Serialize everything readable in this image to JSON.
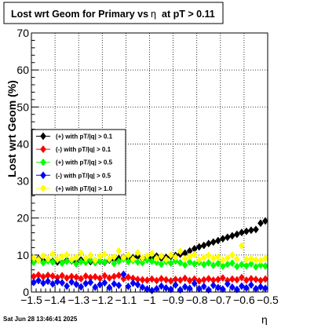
{
  "chart_data": {
    "type": "scatter",
    "title": "Lost wrt Geom for Primary vs",
    "title_symbol": "η",
    "title_suffix": "at pT > 0.11",
    "xlabel": "η",
    "ylabel": "Lost wrt Geom (%)",
    "xlim": [
      -1.5,
      -0.5
    ],
    "ylim": [
      0,
      70
    ],
    "x_ticks": [
      -1.5,
      -1.4,
      -1.3,
      -1.2,
      -1.1,
      -1,
      -0.9,
      -0.8,
      -0.7,
      -0.6,
      -0.5
    ],
    "x_tick_labels": [
      "−1.5",
      "−1.4",
      "−1.3",
      "−1.2",
      "−1.1",
      "−1",
      "−0.9",
      "−0.8",
      "−0.7",
      "−0.6",
      "−0.5"
    ],
    "y_ticks": [
      0,
      10,
      20,
      30,
      40,
      50,
      60,
      70
    ],
    "y_tick_labels": [
      "0",
      "10",
      "20",
      "30",
      "40",
      "50",
      "60",
      "70"
    ],
    "grid": true,
    "legend_position": "left-middle",
    "x": [
      -1.49,
      -1.47,
      -1.45,
      -1.43,
      -1.41,
      -1.39,
      -1.37,
      -1.35,
      -1.33,
      -1.31,
      -1.29,
      -1.27,
      -1.25,
      -1.23,
      -1.21,
      -1.19,
      -1.17,
      -1.15,
      -1.13,
      -1.11,
      -1.09,
      -1.07,
      -1.05,
      -1.03,
      -1.01,
      -0.99,
      -0.97,
      -0.95,
      -0.93,
      -0.91,
      -0.89,
      -0.87,
      -0.85,
      -0.83,
      -0.81,
      -0.79,
      -0.77,
      -0.75,
      -0.73,
      -0.71,
      -0.69,
      -0.67,
      -0.65,
      -0.63,
      -0.61,
      -0.59,
      -0.57,
      -0.55,
      -0.53,
      -0.51
    ],
    "series": [
      {
        "name": "(+) with pT/|q| > 0.1",
        "color": "#000000",
        "values": [
          8.2,
          9.0,
          8.5,
          8.8,
          8.3,
          8.1,
          7.9,
          8.6,
          8.4,
          8.0,
          8.7,
          8.9,
          8.2,
          8.5,
          8.3,
          8.0,
          8.6,
          8.8,
          9.1,
          9.4,
          8.9,
          9.3,
          9.6,
          9.0,
          9.5,
          9.2,
          9.7,
          9.1,
          9.4,
          9.6,
          9.9,
          10.2,
          10.5,
          11.1,
          11.7,
          12.2,
          12.6,
          13.1,
          13.5,
          13.9,
          14.4,
          14.8,
          15.2,
          15.6,
          16.1,
          16.4,
          16.7,
          16.9,
          18.6,
          19.2
        ]
      },
      {
        "name": "(-) with pT/|q| > 0.1",
        "color": "#ff0000",
        "values": [
          4.2,
          4.6,
          4.1,
          4.5,
          4.3,
          3.9,
          4.4,
          3.8,
          4.2,
          4.0,
          3.6,
          4.3,
          3.9,
          4.1,
          3.7,
          4.4,
          3.8,
          4.2,
          4.5,
          3.6,
          4.0,
          3.7,
          3.4,
          3.3,
          3.2,
          3.5,
          3.1,
          3.6,
          3.3,
          3.0,
          3.4,
          3.2,
          3.7,
          3.1,
          3.5,
          3.0,
          3.3,
          3.6,
          3.2,
          3.4,
          3.8,
          3.1,
          3.5,
          3.3,
          3.9,
          3.2,
          3.6,
          3.4,
          3.1,
          3.5
        ]
      },
      {
        "name": "(+) with pT/|q| > 0.5",
        "color": "#00ff00",
        "values": [
          8.0,
          8.6,
          7.9,
          8.4,
          8.1,
          8.7,
          7.8,
          8.3,
          8.5,
          7.6,
          8.2,
          8.0,
          8.6,
          7.9,
          8.4,
          8.1,
          8.8,
          7.7,
          8.3,
          8.9,
          8.2,
          8.5,
          8.1,
          7.9,
          8.6,
          8.3,
          8.0,
          7.5,
          8.2,
          7.8,
          8.4,
          7.9,
          7.3,
          8.1,
          7.6,
          8.0,
          7.4,
          7.9,
          7.2,
          7.7,
          7.0,
          7.5,
          7.8,
          6.9,
          7.4,
          7.1,
          7.6,
          6.8,
          7.3,
          7.0
        ]
      },
      {
        "name": "(-) with pT/|q| > 0.5",
        "color": "#0000ff",
        "values": [
          2.6,
          3.1,
          2.4,
          2.9,
          2.2,
          2.8,
          2.5,
          1.6,
          2.7,
          2.1,
          1.4,
          2.3,
          2.6,
          1.3,
          2.0,
          2.5,
          1.2,
          2.2,
          1.8,
          4.8,
          1.5,
          2.4,
          2.0,
          1.3,
          0.8,
          0.4,
          0.9,
          1.6,
          1.1,
          0.7,
          1.9,
          0.6,
          1.4,
          1.0,
          2.3,
          0.9,
          1.5,
          0.6,
          1.8,
          1.2,
          0.8,
          2.2,
          1.3,
          0.7,
          1.6,
          1.1,
          1.9,
          0.9,
          1.4,
          1.0
        ]
      },
      {
        "name": "(+) with pT/|q| > 1.0",
        "color": "#ffff00",
        "values": [
          9.2,
          8.7,
          9.8,
          9.0,
          10.3,
          8.9,
          9.6,
          10.1,
          8.8,
          9.4,
          10.5,
          9.1,
          9.9,
          8.6,
          9.7,
          10.2,
          9.0,
          9.5,
          11.1,
          9.3,
          10.0,
          8.9,
          10.6,
          9.2,
          9.8,
          10.4,
          9.1,
          9.7,
          8.8,
          10.0,
          9.4,
          11.0,
          9.0,
          9.6,
          10.1,
          8.7,
          9.3,
          9.9,
          9.1,
          9.5,
          8.6,
          9.2,
          10.0,
          8.9,
          12.5,
          8.8,
          9.0,
          8.7,
          8.5,
          9.1
        ]
      }
    ]
  },
  "footer": {
    "timestamp": "Sat Jun 28 13:46:41 2025"
  }
}
